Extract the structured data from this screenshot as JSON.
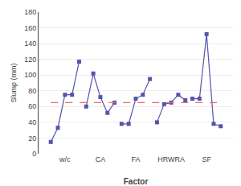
{
  "chart_data": {
    "type": "line",
    "xlabel": "Factor",
    "ylabel": "Slump (mm)",
    "categories": [
      null,
      null,
      "w/c",
      null,
      null,
      null,
      null,
      "CA",
      null,
      null,
      null,
      null,
      "FA",
      null,
      null,
      null,
      null,
      "HRWRA",
      null,
      null,
      null,
      null,
      "SF",
      null,
      null
    ],
    "series": [
      {
        "color": "#5555aa",
        "marker": "square",
        "values": [
          15,
          33,
          75,
          75,
          117,
          null,
          null,
          null,
          null,
          null,
          null,
          null,
          null,
          null,
          null,
          null,
          null,
          null,
          null,
          null,
          null,
          null,
          null,
          null,
          null
        ]
      },
      {
        "color": "#5555aa",
        "marker": "square",
        "values": [
          null,
          null,
          null,
          null,
          null,
          60,
          102,
          72,
          52,
          65,
          null,
          null,
          null,
          null,
          null,
          null,
          null,
          null,
          null,
          null,
          null,
          null,
          null,
          null,
          null
        ]
      },
      {
        "color": "#5555aa",
        "marker": "square",
        "values": [
          null,
          null,
          null,
          null,
          null,
          null,
          null,
          null,
          null,
          null,
          38,
          38,
          70,
          75,
          95,
          null,
          null,
          null,
          null,
          null,
          null,
          null,
          null,
          null,
          null
        ]
      },
      {
        "color": "#5555aa",
        "marker": "square",
        "values": [
          null,
          null,
          null,
          null,
          null,
          null,
          null,
          null,
          null,
          null,
          null,
          null,
          null,
          null,
          null,
          40,
          63,
          65,
          75,
          68,
          null,
          null,
          null,
          null,
          null
        ]
      },
      {
        "color": "#5555aa",
        "marker": "square",
        "values": [
          null,
          null,
          null,
          null,
          null,
          null,
          null,
          null,
          null,
          null,
          null,
          null,
          null,
          null,
          null,
          null,
          null,
          null,
          null,
          null,
          70,
          70,
          152,
          38,
          35
        ]
      },
      {
        "type": "line",
        "color": "#FF6666",
        "line_style": "dashed",
        "values": [
          65,
          65,
          65,
          65,
          65,
          65,
          65,
          65,
          65,
          65,
          65,
          65,
          65,
          65,
          65,
          65,
          65,
          65,
          65,
          65,
          65,
          65,
          65,
          65,
          65
        ]
      }
    ],
    "ylim": [
      0,
      180
    ],
    "yticks": [
      0,
      20,
      40,
      60,
      80,
      100,
      120,
      140,
      160,
      180
    ],
    "grid": true
  }
}
